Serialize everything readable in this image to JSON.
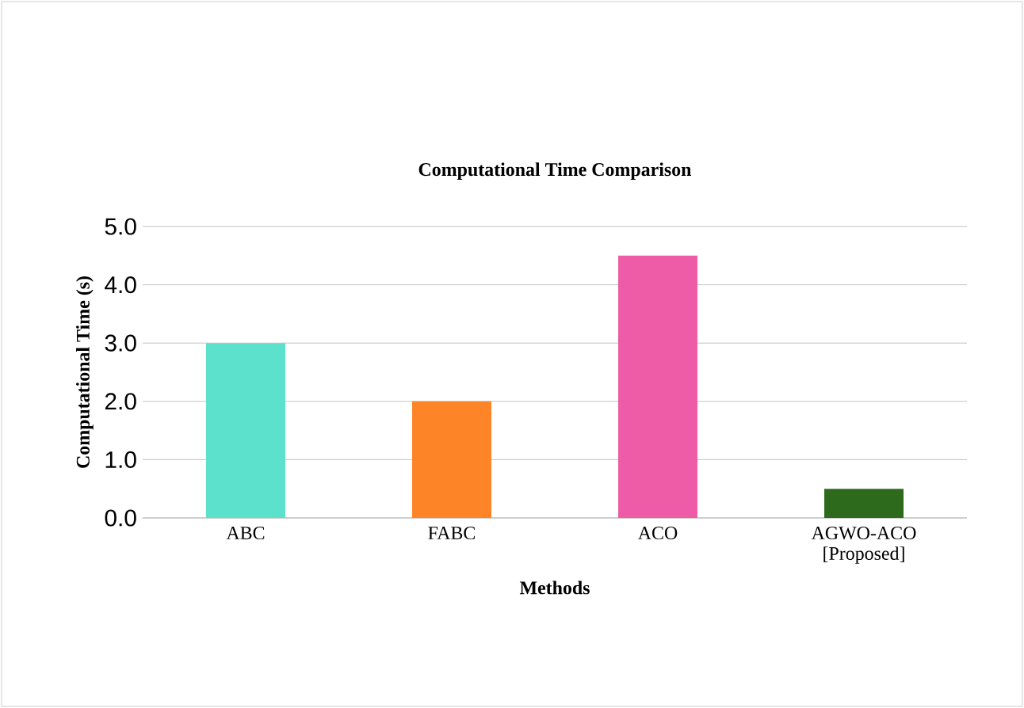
{
  "chart_data": {
    "type": "bar",
    "title": "Computational Time Comparison",
    "xlabel": "Methods",
    "ylabel": "Computational Time (s)",
    "categories": [
      "ABC",
      "FABC",
      "ACO",
      "AGWO-ACO [Proposed]"
    ],
    "values": [
      3.0,
      2.0,
      4.5,
      0.5
    ],
    "colors": [
      "#5ce1cc",
      "#fd8427",
      "#ee5ca8",
      "#2e6a1c"
    ],
    "ylim": [
      0,
      5
    ],
    "yticks": [
      {
        "value": 0,
        "label": "0.0"
      },
      {
        "value": 1,
        "label": "1.0"
      },
      {
        "value": 2,
        "label": "2.0"
      },
      {
        "value": 3,
        "label": "3.0"
      },
      {
        "value": 4,
        "label": "4.0"
      },
      {
        "value": 5,
        "label": "5.0"
      }
    ],
    "grid": "y"
  }
}
